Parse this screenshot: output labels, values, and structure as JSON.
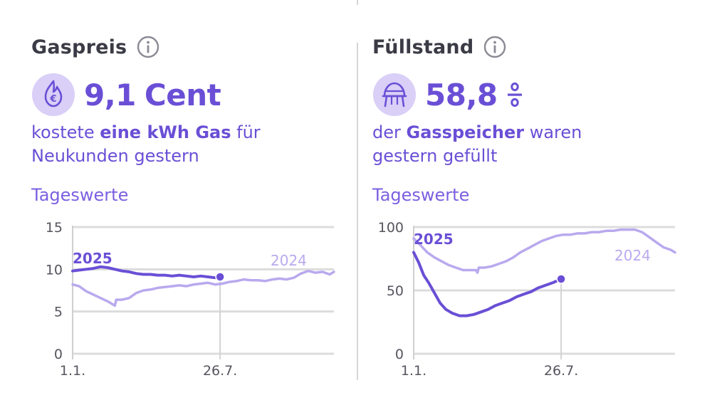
{
  "panels": [
    {
      "title": "Gaspreis",
      "kpi_value": "9,1",
      "kpi_unit": "Cent",
      "desc_1": "kostete ",
      "desc_bold": "eine kWh Gas",
      "desc_2": " für",
      "desc_3": "Neukunden gestern",
      "subtitle": "Tageswerte",
      "icon": "gas-flame-euro-icon"
    },
    {
      "title": "Füllstand",
      "kpi_value": "58,8",
      "kpi_unit": "%",
      "desc_1": "der ",
      "desc_bold": "Gasspeicher",
      "desc_2": " waren",
      "desc_3": "gestern gefüllt",
      "subtitle": "Tageswerte",
      "icon": "gas-storage-tank-icon"
    }
  ],
  "colors": {
    "accent": "#6a4fd6",
    "series_2025": "#6a4fd6",
    "series_2024": "#b9a9ee",
    "grid": "#dcdcdc",
    "title": "#3b3b46"
  },
  "chart_data": [
    {
      "type": "line",
      "x_unit": "day of year",
      "xticks": [
        {
          "x": 1,
          "label": "1.1."
        },
        {
          "x": 207,
          "label": "26.7."
        }
      ],
      "yticks": [
        {
          "y": 0,
          "label": "0"
        },
        {
          "y": 5,
          "label": "5"
        },
        {
          "y": 10,
          "label": "10"
        },
        {
          "y": 15,
          "label": "15"
        }
      ],
      "xlim": [
        1,
        366
      ],
      "ylim": [
        0,
        15
      ],
      "series": [
        {
          "name": "2025",
          "color": "#6a4fd6",
          "end_marker": true,
          "points": [
            [
              1,
              9.8
            ],
            [
              10,
              9.9
            ],
            [
              20,
              10.0
            ],
            [
              30,
              10.1
            ],
            [
              40,
              10.3
            ],
            [
              50,
              10.2
            ],
            [
              60,
              10.0
            ],
            [
              70,
              9.8
            ],
            [
              80,
              9.7
            ],
            [
              90,
              9.5
            ],
            [
              100,
              9.4
            ],
            [
              110,
              9.4
            ],
            [
              120,
              9.3
            ],
            [
              130,
              9.3
            ],
            [
              140,
              9.2
            ],
            [
              150,
              9.3
            ],
            [
              160,
              9.2
            ],
            [
              170,
              9.1
            ],
            [
              180,
              9.2
            ],
            [
              190,
              9.1
            ],
            [
              200,
              9.0
            ],
            [
              207,
              9.1
            ]
          ]
        },
        {
          "name": "2024",
          "color": "#b9a9ee",
          "end_marker": false,
          "points": [
            [
              1,
              8.2
            ],
            [
              10,
              8.0
            ],
            [
              20,
              7.4
            ],
            [
              30,
              7.0
            ],
            [
              40,
              6.6
            ],
            [
              50,
              6.2
            ],
            [
              60,
              5.7
            ],
            [
              62,
              6.4
            ],
            [
              70,
              6.4
            ],
            [
              80,
              6.6
            ],
            [
              90,
              7.2
            ],
            [
              100,
              7.5
            ],
            [
              110,
              7.6
            ],
            [
              120,
              7.8
            ],
            [
              130,
              7.9
            ],
            [
              140,
              8.0
            ],
            [
              150,
              8.1
            ],
            [
              160,
              8.0
            ],
            [
              170,
              8.2
            ],
            [
              180,
              8.3
            ],
            [
              190,
              8.4
            ],
            [
              200,
              8.2
            ],
            [
              210,
              8.3
            ],
            [
              220,
              8.5
            ],
            [
              230,
              8.6
            ],
            [
              240,
              8.8
            ],
            [
              250,
              8.7
            ],
            [
              260,
              8.7
            ],
            [
              270,
              8.6
            ],
            [
              280,
              8.8
            ],
            [
              290,
              8.9
            ],
            [
              300,
              8.8
            ],
            [
              310,
              9.0
            ],
            [
              320,
              9.5
            ],
            [
              330,
              9.8
            ],
            [
              340,
              9.6
            ],
            [
              350,
              9.7
            ],
            [
              360,
              9.4
            ],
            [
              366,
              9.7
            ]
          ]
        }
      ],
      "series_labels": [
        {
          "text": "2025",
          "bold": true,
          "color": "#6a4fd6"
        },
        {
          "text": "2024",
          "bold": false,
          "color": "#b9a9ee"
        }
      ]
    },
    {
      "type": "line",
      "x_unit": "day of year",
      "xticks": [
        {
          "x": 1,
          "label": "1.1."
        },
        {
          "x": 207,
          "label": "26.7."
        }
      ],
      "yticks": [
        {
          "y": 0,
          "label": "0"
        },
        {
          "y": 50,
          "label": "50"
        },
        {
          "y": 100,
          "label": "100"
        }
      ],
      "xlim": [
        1,
        366
      ],
      "ylim": [
        0,
        100
      ],
      "series": [
        {
          "name": "2025",
          "color": "#6a4fd6",
          "end_marker": true,
          "points": [
            [
              1,
              80
            ],
            [
              8,
              72
            ],
            [
              15,
              62
            ],
            [
              22,
              56
            ],
            [
              30,
              48
            ],
            [
              38,
              40
            ],
            [
              46,
              35
            ],
            [
              55,
              32
            ],
            [
              65,
              30
            ],
            [
              75,
              30
            ],
            [
              85,
              31
            ],
            [
              95,
              33
            ],
            [
              105,
              35
            ],
            [
              115,
              38
            ],
            [
              125,
              40
            ],
            [
              135,
              42
            ],
            [
              145,
              45
            ],
            [
              155,
              47
            ],
            [
              165,
              49
            ],
            [
              175,
              52
            ],
            [
              185,
              54
            ],
            [
              195,
              56
            ],
            [
              207,
              59
            ]
          ]
        },
        {
          "name": "2024",
          "color": "#b9a9ee",
          "end_marker": false,
          "points": [
            [
              1,
              91
            ],
            [
              10,
              86
            ],
            [
              20,
              80
            ],
            [
              30,
              76
            ],
            [
              40,
              73
            ],
            [
              50,
              70
            ],
            [
              60,
              68
            ],
            [
              70,
              66
            ],
            [
              80,
              66
            ],
            [
              88,
              66
            ],
            [
              90,
              64
            ],
            [
              92,
              68
            ],
            [
              100,
              68
            ],
            [
              110,
              69
            ],
            [
              120,
              71
            ],
            [
              130,
              73
            ],
            [
              140,
              76
            ],
            [
              150,
              80
            ],
            [
              160,
              83
            ],
            [
              170,
              86
            ],
            [
              180,
              89
            ],
            [
              190,
              91
            ],
            [
              200,
              93
            ],
            [
              210,
              94
            ],
            [
              220,
              94
            ],
            [
              230,
              95
            ],
            [
              240,
              95
            ],
            [
              250,
              96
            ],
            [
              260,
              96
            ],
            [
              270,
              97
            ],
            [
              280,
              97
            ],
            [
              290,
              98
            ],
            [
              300,
              98
            ],
            [
              310,
              98
            ],
            [
              320,
              96
            ],
            [
              330,
              92
            ],
            [
              340,
              88
            ],
            [
              350,
              84
            ],
            [
              360,
              82
            ],
            [
              366,
              80
            ]
          ]
        }
      ],
      "series_labels": [
        {
          "text": "2025",
          "bold": true,
          "color": "#6a4fd6"
        },
        {
          "text": "2024",
          "bold": false,
          "color": "#b9a9ee"
        }
      ]
    }
  ]
}
